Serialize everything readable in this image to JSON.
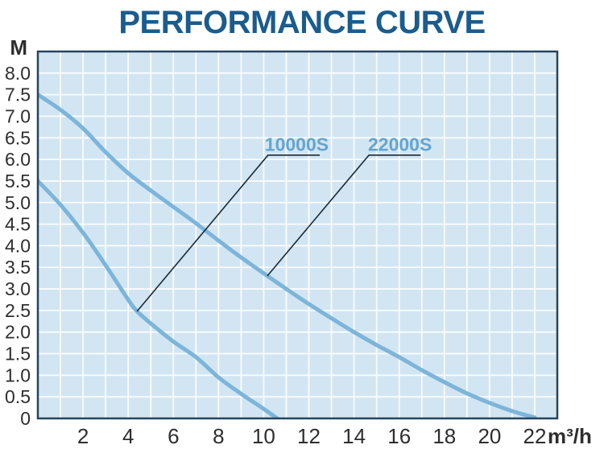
{
  "page": {
    "background": "#ffffff"
  },
  "chart_data": {
    "type": "line",
    "title": "PERFORMANCE CURVE",
    "ylabel": "M",
    "xlabel": "m³/h",
    "xlim": [
      0,
      23
    ],
    "ylim": [
      0,
      8.5
    ],
    "x_ticks": [
      2,
      4,
      6,
      8,
      10,
      12,
      14,
      16,
      18,
      20,
      22
    ],
    "y_ticks": [
      {
        "v": 8.0,
        "t": "8.0"
      },
      {
        "v": 7.5,
        "t": "7.5"
      },
      {
        "v": 7.0,
        "t": "7.0"
      },
      {
        "v": 6.5,
        "t": "6.5"
      },
      {
        "v": 6.0,
        "t": "6.0"
      },
      {
        "v": 5.5,
        "t": "5.5"
      },
      {
        "v": 5.0,
        "t": "5.0"
      },
      {
        "v": 4.5,
        "t": "4.5"
      },
      {
        "v": 4.0,
        "t": "4.0"
      },
      {
        "v": 3.5,
        "t": "3.5"
      },
      {
        "v": 3.0,
        "t": "3.0"
      },
      {
        "v": 2.5,
        "t": "2.5"
      },
      {
        "v": 2.0,
        "t": "2.0"
      },
      {
        "v": 1.5,
        "t": "1.5"
      },
      {
        "v": 1.0,
        "t": "1.0"
      },
      {
        "v": 0.5,
        "t": "0.5"
      },
      {
        "v": 0,
        "t": "0"
      }
    ],
    "grid": {
      "visible": true,
      "x_step": 1,
      "y_step": 0.5
    },
    "legend_position": "none",
    "series": [
      {
        "name": "10000S",
        "points": [
          [
            0,
            5.5
          ],
          [
            1,
            4.95
          ],
          [
            2,
            4.3
          ],
          [
            3,
            3.55
          ],
          [
            4,
            2.75
          ],
          [
            4.4,
            2.48
          ],
          [
            5,
            2.2
          ],
          [
            6,
            1.78
          ],
          [
            7,
            1.42
          ],
          [
            8,
            0.95
          ],
          [
            9,
            0.57
          ],
          [
            10,
            0.22
          ],
          [
            10.6,
            0
          ]
        ]
      },
      {
        "name": "22000S",
        "points": [
          [
            0,
            7.5
          ],
          [
            1,
            7.15
          ],
          [
            2,
            6.72
          ],
          [
            3,
            6.17
          ],
          [
            4,
            5.68
          ],
          [
            5,
            5.28
          ],
          [
            6,
            4.9
          ],
          [
            7,
            4.52
          ],
          [
            8,
            4.12
          ],
          [
            9,
            3.73
          ],
          [
            10,
            3.36
          ],
          [
            11,
            3.0
          ],
          [
            12,
            2.65
          ],
          [
            13,
            2.32
          ],
          [
            14,
            2.0
          ],
          [
            15,
            1.7
          ],
          [
            16,
            1.42
          ],
          [
            17,
            1.12
          ],
          [
            18,
            0.84
          ],
          [
            19,
            0.58
          ],
          [
            20,
            0.36
          ],
          [
            21,
            0.17
          ],
          [
            22,
            0.02
          ]
        ]
      }
    ],
    "annotations": [
      {
        "label": "10000S",
        "pointer": [
          [
            12.48,
            6.1
          ],
          [
            10.19,
            6.1
          ],
          [
            4.39,
            2.48
          ]
        ],
        "label_at": [
          10.05,
          6.2
        ]
      },
      {
        "label": "22000S",
        "pointer": [
          [
            16.95,
            6.1
          ],
          [
            14.66,
            6.1
          ],
          [
            10.16,
            3.3
          ]
        ],
        "label_at": [
          14.62,
          6.2
        ]
      }
    ],
    "colors": {
      "title": "#1b5c8d",
      "plot_bg": "#d2e5f2",
      "grid": "#ffffff",
      "border": "#24455f",
      "curve": "#7cb5d9",
      "series_label": "#64a5ce",
      "pointer": "#1b2b36",
      "tick_text": "#2e2e2e"
    }
  }
}
